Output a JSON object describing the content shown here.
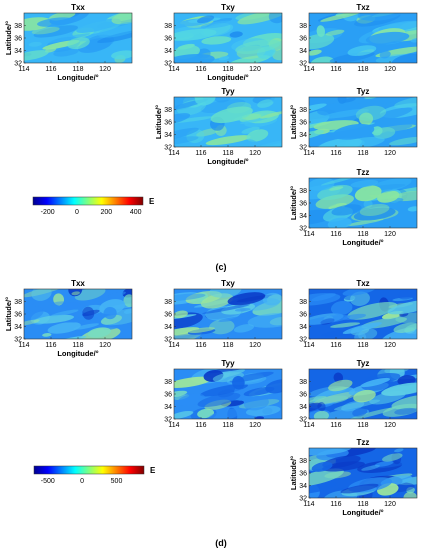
{
  "figure": {
    "caption_c": "(c)",
    "caption_d": "(d)",
    "xlabel": "Longitude/°",
    "ylabel": "Latitude/°",
    "x_ticks": [
      "114",
      "116",
      "118",
      "120"
    ],
    "y_ticks": [
      "32",
      "34",
      "36",
      "38"
    ]
  },
  "chart_data": [
    {
      "type": "heatmap",
      "name": "panel-c",
      "panels": [
        {
          "title": "Txx",
          "row": 0,
          "col": 0,
          "xlabel": true,
          "ylabel": true
        },
        {
          "title": "Txy",
          "row": 0,
          "col": 1,
          "xlabel": true,
          "ylabel": false
        },
        {
          "title": "Txz",
          "row": 0,
          "col": 2,
          "xlabel": false,
          "ylabel": false
        },
        {
          "title": "Tyy",
          "row": 1,
          "col": 1,
          "xlabel": true,
          "ylabel": true
        },
        {
          "title": "Tyz",
          "row": 1,
          "col": 2,
          "xlabel": false,
          "ylabel": true
        },
        {
          "title": "Tzz",
          "row": 2,
          "col": 2,
          "xlabel": true,
          "ylabel": true
        }
      ],
      "xlim": [
        114,
        122
      ],
      "ylim": [
        32,
        40
      ],
      "colorbar": {
        "ticks": [
          "-200",
          "0",
          "200",
          "400"
        ],
        "range": [
          -300,
          450
        ],
        "unit": "E"
      }
    },
    {
      "type": "heatmap",
      "name": "panel-d",
      "panels": [
        {
          "title": "Txx",
          "row": 0,
          "col": 0,
          "xlabel": true,
          "ylabel": true
        },
        {
          "title": "Txy",
          "row": 0,
          "col": 1,
          "xlabel": false,
          "ylabel": false
        },
        {
          "title": "Txz",
          "row": 0,
          "col": 2,
          "xlabel": false,
          "ylabel": false
        },
        {
          "title": "Tyy",
          "row": 1,
          "col": 1,
          "xlabel": false,
          "ylabel": false
        },
        {
          "title": "Tyz",
          "row": 1,
          "col": 2,
          "xlabel": false,
          "ylabel": false
        },
        {
          "title": "Tzz",
          "row": 2,
          "col": 2,
          "xlabel": true,
          "ylabel": true
        }
      ],
      "xlim": [
        114,
        122
      ],
      "ylim": [
        32,
        40
      ],
      "colorbar": {
        "ticks": [
          "-500",
          "0",
          "500"
        ],
        "range": [
          -700,
          900
        ],
        "unit": "E"
      }
    }
  ]
}
